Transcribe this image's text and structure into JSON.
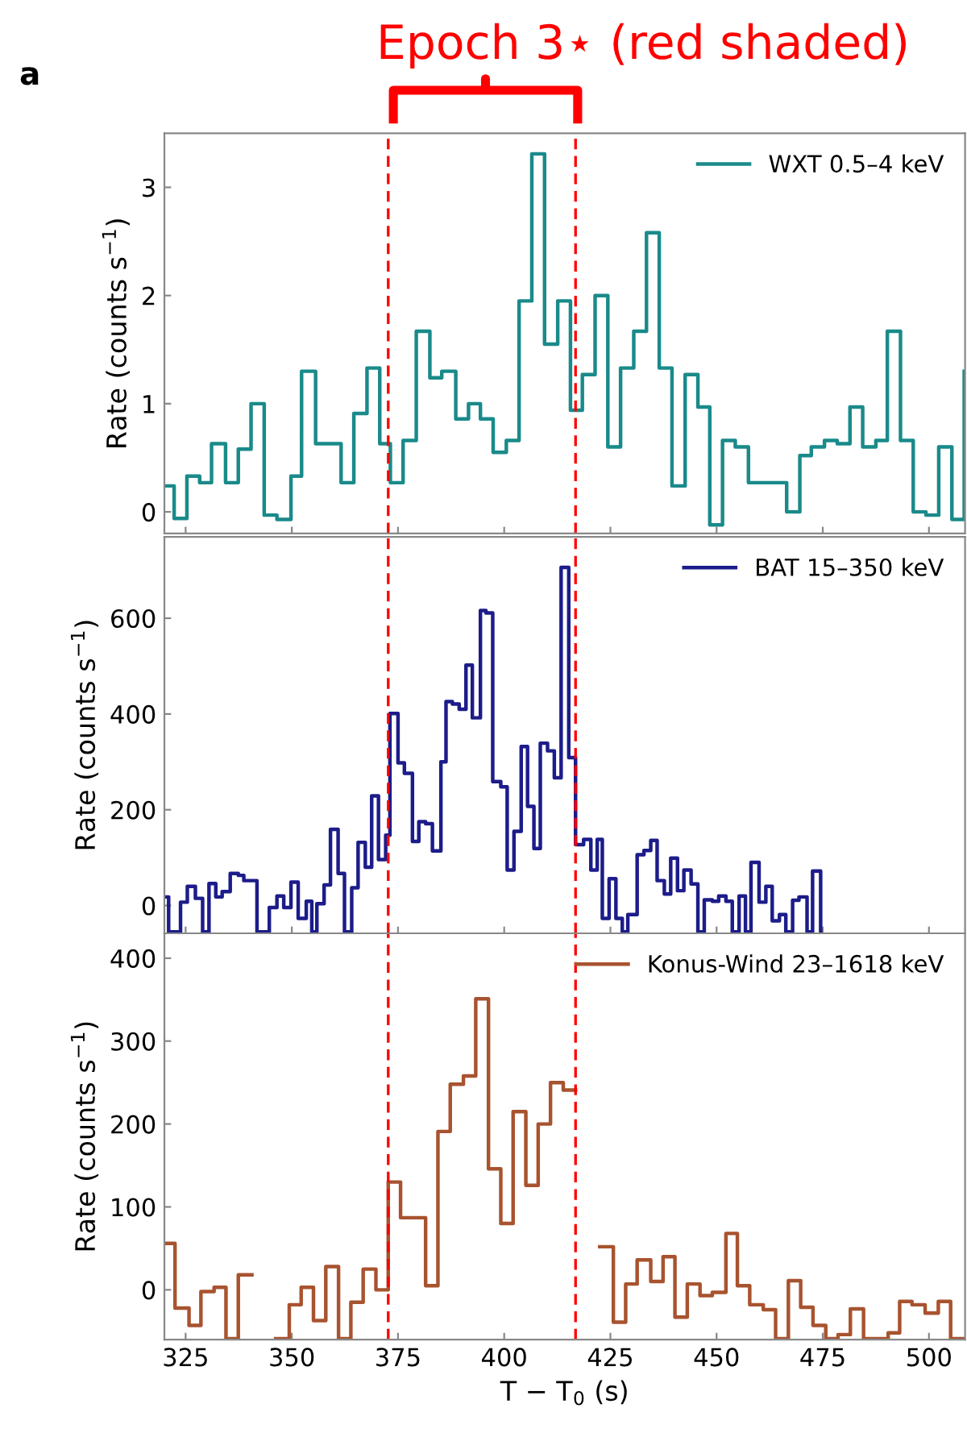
{
  "chart_data": [
    {
      "type": "step",
      "ylabel": "Rate (counts s$^{−1}$)",
      "xlim": [
        320,
        508.5
      ],
      "xticks": [
        325,
        350,
        375,
        400,
        425,
        450,
        475,
        500
      ],
      "ylim": [
        -0.2,
        3.5
      ],
      "yticks": [
        0,
        1,
        2,
        3
      ],
      "tick_labels": "y",
      "legend": "top right",
      "grid": false,
      "annotations": [
        "Epoch 3⋆ (red shaded)",
        "a"
      ],
      "ref_lines": [
        {
          "axis": "x",
          "value": 372.7,
          "color": "#ff0000",
          "line_style": "dashed"
        },
        {
          "axis": "x",
          "value": 416.8,
          "color": "#ff0000",
          "line_style": "dashed"
        }
      ],
      "series": [
        {
          "name": "WXT 0.5–4 keV",
          "color": "#1a8a8a",
          "x": [
            320,
            322.3,
            325.3,
            328.3,
            331.1,
            334.4,
            337.4,
            340.4,
            343.5,
            346.5,
            349.8,
            352.3,
            355.6,
            361.6,
            364.6,
            367.7,
            370.7,
            373.2,
            376.2,
            379.3,
            382.5,
            385.3,
            388.6,
            391.6,
            394.4,
            397.4,
            400.5,
            403.5,
            406.5,
            409.5,
            412.6,
            415.6,
            418.4,
            421.4,
            424.4,
            427.4,
            430.5,
            433.5,
            436.5,
            439.5,
            442.6,
            445.6,
            448.4,
            451.4,
            454.4,
            457.5,
            466.5,
            469.6,
            472.3,
            475.4,
            478.4,
            481.4,
            484.4,
            487.5,
            490.2,
            493.3,
            496.3,
            499.3,
            502.3,
            505.4,
            508.3
          ],
          "values": [
            0.24,
            -0.06,
            0.33,
            0.27,
            0.63,
            0.27,
            0.58,
            1.0,
            -0.03,
            -0.07,
            0.33,
            1.3,
            0.63,
            0.27,
            0.91,
            1.33,
            0.63,
            0.27,
            0.66,
            1.67,
            1.24,
            1.3,
            0.86,
            1.0,
            0.86,
            0.55,
            0.66,
            1.95,
            3.31,
            1.55,
            1.95,
            0.94,
            1.27,
            2.0,
            0.6,
            1.33,
            1.67,
            2.58,
            1.33,
            0.24,
            1.27,
            0.97,
            -0.12,
            0.66,
            0.6,
            0.27,
            0.0,
            0.52,
            0.6,
            0.66,
            0.63,
            0.97,
            0.6,
            0.66,
            1.67,
            0.66,
            0.0,
            -0.03,
            0.6,
            -0.07,
            1.3
          ]
        }
      ]
    },
    {
      "type": "step",
      "ylabel": "Rate (counts s$^{−1}$)",
      "xlim": [
        320,
        508.5
      ],
      "xticks": [
        325,
        350,
        375,
        400,
        425,
        450,
        475,
        500
      ],
      "ylim": [
        -58,
        770
      ],
      "yticks": [
        0,
        200,
        400,
        600
      ],
      "tick_labels": "y",
      "legend": "top right",
      "grid": false,
      "ref_lines": [
        {
          "axis": "x",
          "value": 372.7,
          "color": "#ff0000",
          "line_style": "dashed"
        },
        {
          "axis": "x",
          "value": 416.8,
          "color": "#ff0000",
          "line_style": "dashed"
        }
      ],
      "series": [
        {
          "name": "BAT 15–350 keV",
          "color": "#1c1c8a",
          "x": [
            320.0,
            321.0,
            323.8,
            325.4,
            327.3,
            329.0,
            330.5,
            332.1,
            333.6,
            335.5,
            337.4,
            338.7,
            341.8,
            344.7,
            346.5,
            348.1,
            349.8,
            351.5,
            353.4,
            354.7,
            355.9,
            357.6,
            359.1,
            360.9,
            362.4,
            364.1,
            365.6,
            367.3,
            368.8,
            370.4,
            372.1,
            373.1,
            375.0,
            376.5,
            378.4,
            379.9,
            381.5,
            383.1,
            385.1,
            386.3,
            387.8,
            389.4,
            391.0,
            392.5,
            394.4,
            395.7,
            397.3,
            399.2,
            400.7,
            402.3,
            404.0,
            405.5,
            407.0,
            408.5,
            410.2,
            411.8,
            413.4,
            415.2,
            416.8,
            418.7,
            420.4,
            421.9,
            423.1,
            424.7,
            426.3,
            427.8,
            429.1,
            431.3,
            432.9,
            434.5,
            436.0,
            437.7,
            439.2,
            440.8,
            442.3,
            444.0,
            445.6,
            447.1,
            449.0,
            450.5,
            452.2,
            453.7,
            455.3,
            456.8,
            458.1,
            460.0,
            461.6,
            463.1,
            464.8,
            466.3,
            467.9,
            469.4,
            471.3,
            472.6,
            474.5
          ],
          "values": [
            18,
            -55,
            7,
            40,
            15,
            -55,
            46,
            18,
            29,
            67,
            63,
            52,
            -55,
            -4,
            20,
            -4,
            49,
            -27,
            9,
            -55,
            4,
            43,
            159,
            67,
            -55,
            37,
            132,
            80,
            229,
            96,
            147,
            401,
            298,
            276,
            134,
            175,
            171,
            114,
            300,
            426,
            421,
            410,
            502,
            392,
            616,
            611,
            259,
            248,
            74,
            155,
            332,
            207,
            119,
            339,
            323,
            267,
            706,
            309,
            127,
            138,
            74,
            138,
            -27,
            56,
            -27,
            -55,
            -19,
            106,
            115,
            136,
            52,
            24,
            99,
            31,
            74,
            45,
            -55,
            12,
            9,
            20,
            9,
            -55,
            20,
            -55,
            90,
            7,
            40,
            -32,
            -19,
            -55,
            11,
            18,
            -55,
            72,
            -55
          ]
        }
      ]
    },
    {
      "type": "step",
      "ylabel": "Rate (counts s$^{−1}$)",
      "xlabel": "T − T$_{0}$ (s)",
      "xlim": [
        320,
        508.5
      ],
      "xticks": [
        325,
        350,
        375,
        400,
        425,
        450,
        475,
        500
      ],
      "ylim": [
        -60,
        430
      ],
      "yticks": [
        0,
        100,
        200,
        300,
        400
      ],
      "legend": "top right",
      "grid": false,
      "ref_lines": [
        {
          "axis": "x",
          "value": 372.7,
          "color": "#ff0000",
          "line_style": "dashed"
        },
        {
          "axis": "x",
          "value": 416.8,
          "color": "#ff0000",
          "line_style": "dashed"
        }
      ],
      "series": [
        {
          "name": "Konus-Wind 23–1618 keV",
          "color": "#a8532f",
          "x": [
            320,
            322.5,
            325.8,
            328.6,
            331.7,
            334.5,
            337.4,
            340.6,
            346.2,
            349.4,
            352.2,
            355.1,
            358.0,
            361.0,
            363.9,
            366.8,
            369.8,
            372.7,
            375.6,
            381.5,
            384.4,
            387.3,
            390.4,
            393.3,
            396.3,
            399.2,
            402.1,
            405.1,
            408.0,
            410.9,
            413.9,
            416.8,
            422.5,
            425.7,
            428.6,
            431.3,
            434.5,
            437.4,
            440.2,
            443.1,
            446.1,
            449.0,
            452.2,
            454.9,
            457.8,
            461.0,
            463.9,
            466.9,
            469.8,
            472.7,
            475.7,
            478.6,
            481.5,
            484.6,
            490.4,
            493.1,
            496.0,
            499.1,
            502.2,
            505.1,
            508.3
          ],
          "values": [
            56,
            -22,
            -43,
            -2,
            3,
            -59,
            18,
            null,
            -59,
            -18,
            3,
            -37,
            28,
            -59,
            -15,
            25,
            0,
            130,
            87,
            5,
            191,
            248,
            258,
            351,
            146,
            80,
            215,
            126,
            200,
            250,
            241,
            null,
            52,
            -39,
            7,
            36,
            10,
            40,
            -33,
            7,
            -7,
            -3,
            68,
            5,
            -18,
            -24,
            -59,
            11,
            -21,
            -43,
            -59,
            -54,
            -23,
            -59,
            -52,
            -14,
            -18,
            -28,
            -14,
            -59,
            -59
          ]
        }
      ]
    }
  ]
}
